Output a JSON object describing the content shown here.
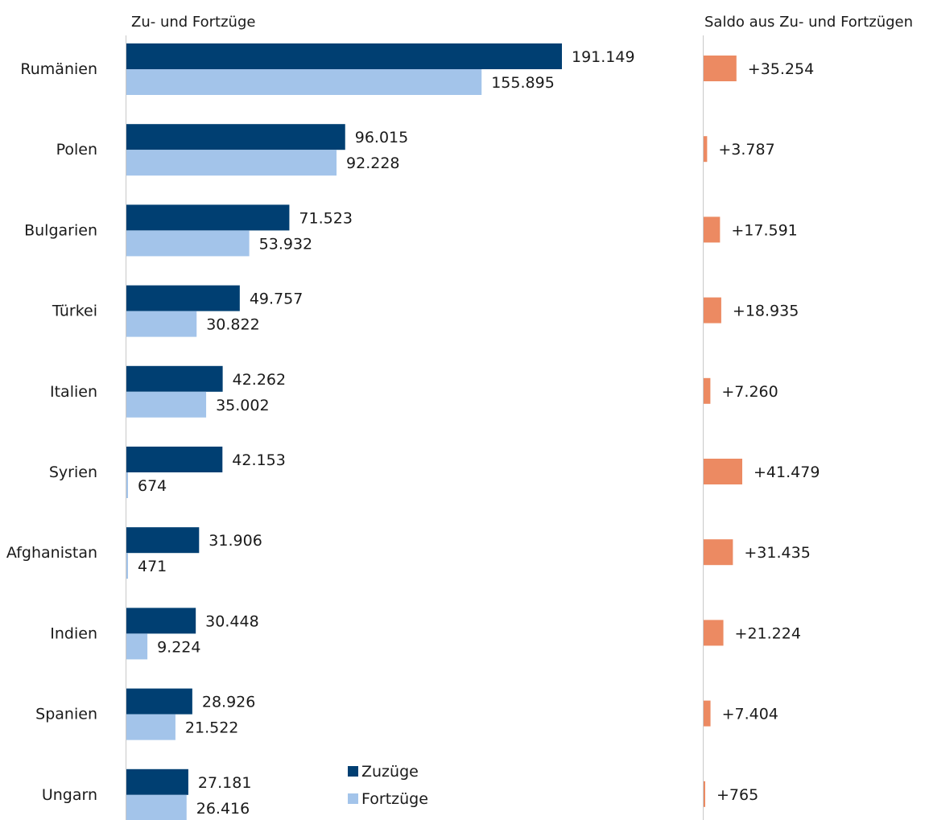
{
  "chart_data": [
    {
      "type": "bar",
      "orientation": "horizontal",
      "title": "Zu- und Fortzüge",
      "categories": [
        "Rumänien",
        "Polen",
        "Bulgarien",
        "Türkei",
        "Italien",
        "Syrien",
        "Afghanistan",
        "Indien",
        "Spanien",
        "Ungarn"
      ],
      "series": [
        {
          "name": "Zuzüge",
          "color": "#003f72",
          "values": [
            191149,
            96015,
            71523,
            49757,
            42262,
            42153,
            31906,
            30448,
            28926,
            27181
          ],
          "labels": [
            "191.149",
            "96.015",
            "71.523",
            "49.757",
            "42.262",
            "42.153",
            "31.906",
            "30.448",
            "28.926",
            "27.181"
          ]
        },
        {
          "name": "Fortzüge",
          "color": "#a3c4ea",
          "values": [
            155895,
            92228,
            53932,
            30822,
            35002,
            674,
            471,
            9224,
            21522,
            26416
          ],
          "labels": [
            "155.895",
            "92.228",
            "53.932",
            "30.822",
            "35.002",
            "674",
            "471",
            "9.224",
            "21.522",
            "26.416"
          ]
        }
      ],
      "xlim": [
        0,
        191149
      ],
      "legend": "bottom-right",
      "grid": false
    },
    {
      "type": "bar",
      "orientation": "horizontal",
      "title": "Saldo aus Zu- und Fortzügen",
      "categories": [
        "Rumänien",
        "Polen",
        "Bulgarien",
        "Türkei",
        "Italien",
        "Syrien",
        "Afghanistan",
        "Indien",
        "Spanien",
        "Ungarn"
      ],
      "series": [
        {
          "color": "#ec8a62",
          "values": [
            35254,
            3787,
            17591,
            18935,
            7260,
            41479,
            31435,
            21224,
            7404,
            765
          ],
          "labels": [
            "+35.254",
            "+3.787",
            "+17.591",
            "+18.935",
            "+7.260",
            "+41.479",
            "+31.435",
            "+21.224",
            "+7.404",
            "+765"
          ]
        }
      ],
      "xlim": [
        0,
        41479
      ],
      "grid": false
    }
  ]
}
